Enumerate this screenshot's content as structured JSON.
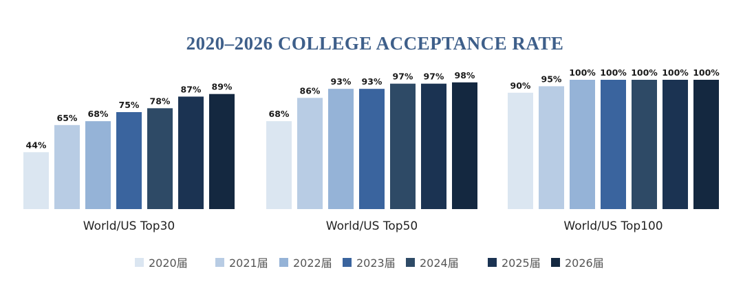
{
  "colors": {
    "title": "#3e5f8a",
    "series": [
      "#dbe6f1",
      "#b8cce4",
      "#95b3d7",
      "#3a649e",
      "#2e4a66",
      "#1b3352",
      "#142840"
    ]
  },
  "chart_data": {
    "type": "bar",
    "title": "2020–2026 COLLEGE ACCEPTANCE RATE",
    "categories": [
      "World/US Top30",
      "World/US Top50",
      "World/US Top100"
    ],
    "series": [
      {
        "name": "2020届",
        "values": [
          44,
          68,
          90
        ],
        "labels": [
          "44%",
          "68%",
          "90%"
        ]
      },
      {
        "name": "2021届",
        "values": [
          65,
          86,
          95
        ],
        "labels": [
          "65%",
          "86%",
          "95%"
        ]
      },
      {
        "name": "2022届",
        "values": [
          68,
          93,
          100
        ],
        "labels": [
          "68%",
          "93%",
          "100%"
        ]
      },
      {
        "name": "2023届",
        "values": [
          75,
          93,
          100
        ],
        "labels": [
          "75%",
          "93%",
          "100%"
        ]
      },
      {
        "name": "2024届",
        "values": [
          78,
          97,
          100
        ],
        "labels": [
          "78%",
          "97%",
          "100%"
        ]
      },
      {
        "name": "2025届",
        "values": [
          87,
          97,
          100
        ],
        "labels": [
          "87%",
          "97%",
          "100%"
        ]
      },
      {
        "name": "2026届",
        "values": [
          89,
          98,
          100
        ],
        "labels": [
          "89%",
          "98%",
          "100%"
        ]
      }
    ],
    "ylim": [
      0,
      100
    ],
    "grid": false,
    "legend": "bottom"
  }
}
